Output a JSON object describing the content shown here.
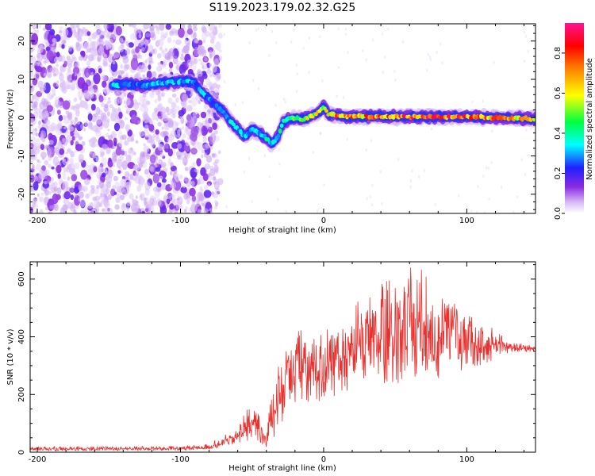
{
  "figure": {
    "title": "S119.2023.179.02.32.G25"
  },
  "chart_data": [
    {
      "type": "heatmap",
      "xlabel": "Height of straight line (km)",
      "ylabel": "Frequency (Hz)",
      "xlim": [
        -205,
        148
      ],
      "ylim": [
        -25,
        24.5
      ],
      "x_ticks": [
        -200,
        -100,
        0,
        100
      ],
      "y_ticks": [
        -20,
        -10,
        0,
        10,
        20
      ],
      "colorbar": {
        "label": "Normalized spectral amplitude",
        "range": [
          0,
          0.95
        ],
        "ticks": [
          0.0,
          0.2,
          0.4,
          0.6,
          0.8
        ],
        "colormap": [
          "#ffffff",
          "#c9a8f0",
          "#8a2be2",
          "#2020ff",
          "#00ffff",
          "#00ff40",
          "#ffff00",
          "#ff8000",
          "#ff0000",
          "#ff1493"
        ]
      },
      "ridge": {
        "x": [
          -145,
          -135,
          -125,
          -115,
          -105,
          -97,
          -90,
          -85,
          -80,
          -75,
          -70,
          -65,
          -60,
          -55,
          -50,
          -45,
          -40,
          -36,
          -32,
          -28,
          -22,
          -15,
          -8,
          -3,
          0,
          3,
          10,
          20,
          40,
          60,
          80,
          100,
          120,
          148
        ],
        "frequency": [
          8.5,
          8.7,
          8.3,
          9.0,
          9.3,
          9.6,
          9.0,
          6.5,
          5.0,
          3.0,
          1.5,
          -1.0,
          -3.0,
          -5.0,
          -3.0,
          -4.0,
          -5.5,
          -7.0,
          -5.0,
          -1.0,
          0.0,
          -0.5,
          0.5,
          1.5,
          3.0,
          1.0,
          0.5,
          0.3,
          0.3,
          0.2,
          0.2,
          0.2,
          0.0,
          -0.3
        ],
        "amplitude": [
          0.35,
          0.3,
          0.3,
          0.35,
          0.35,
          0.35,
          0.3,
          0.35,
          0.3,
          0.3,
          0.35,
          0.35,
          0.35,
          0.35,
          0.35,
          0.35,
          0.4,
          0.4,
          0.4,
          0.45,
          0.5,
          0.55,
          0.6,
          0.65,
          0.5,
          0.7,
          0.85,
          0.75,
          0.8,
          0.85,
          0.85,
          0.85,
          0.75,
          0.65
        ]
      },
      "noise_region_x": [
        -205,
        -80
      ]
    },
    {
      "type": "line",
      "xlabel": "Height of straight line (km)",
      "ylabel": "SNR (10 * v/v)",
      "xlim": [
        -205,
        148
      ],
      "ylim": [
        0,
        660
      ],
      "x_ticks": [
        -200,
        -100,
        0,
        100
      ],
      "y_ticks": [
        0,
        200,
        400,
        600
      ],
      "line_color": "#e8302e",
      "envelope": {
        "x": [
          -205,
          -150,
          -100,
          -90,
          -80,
          -70,
          -60,
          -52,
          -45,
          -40,
          -35,
          -30,
          -25,
          -20,
          -10,
          0,
          10,
          20,
          30,
          40,
          50,
          60,
          70,
          80,
          90,
          100,
          110,
          120,
          130,
          140,
          148
        ],
        "low": [
          5,
          5,
          5,
          8,
          10,
          20,
          30,
          40,
          20,
          10,
          40,
          100,
          120,
          150,
          150,
          180,
          200,
          220,
          260,
          220,
          230,
          240,
          250,
          250,
          270,
          290,
          300,
          320,
          345,
          345,
          348
        ],
        "high": [
          22,
          20,
          22,
          28,
          32,
          60,
          90,
          170,
          130,
          80,
          240,
          330,
          380,
          440,
          430,
          420,
          480,
          500,
          560,
          600,
          600,
          640,
          660,
          550,
          520,
          490,
          450,
          430,
          380,
          375,
          370
        ],
        "center": [
          12,
          12,
          12,
          15,
          18,
          35,
          55,
          95,
          70,
          40,
          140,
          220,
          270,
          300,
          300,
          300,
          340,
          360,
          400,
          400,
          410,
          420,
          420,
          400,
          395,
          390,
          375,
          375,
          365,
          362,
          360
        ]
      }
    }
  ]
}
